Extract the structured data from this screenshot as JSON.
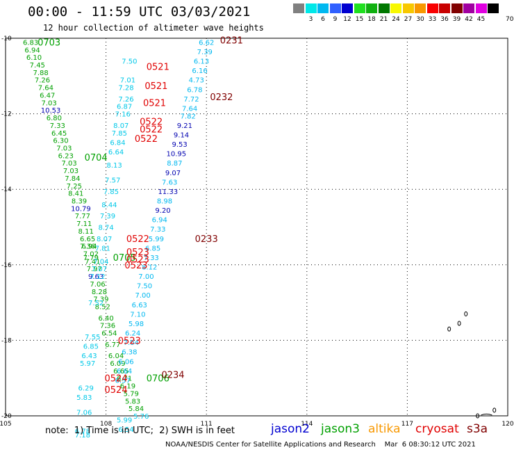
{
  "header": {
    "title": "00:00 - 11:59 UTC 03/03/2021",
    "subtitle": "12 hour collection of altimeter wave heights"
  },
  "color_scale": {
    "unit": "70 (ft)",
    "bins": [
      {
        "label": "",
        "color": "#808080"
      },
      {
        "label": "3",
        "color": "#00e8e8"
      },
      {
        "label": "6",
        "color": "#00b8f0"
      },
      {
        "label": "9",
        "color": "#3060ff"
      },
      {
        "label": "12",
        "color": "#0000d0"
      },
      {
        "label": "15",
        "color": "#20e020"
      },
      {
        "label": "18",
        "color": "#10b010"
      },
      {
        "label": "21",
        "color": "#007800"
      },
      {
        "label": "24",
        "color": "#f8f800"
      },
      {
        "label": "27",
        "color": "#f8c800"
      },
      {
        "label": "30",
        "color": "#f89800"
      },
      {
        "label": "33",
        "color": "#f80000"
      },
      {
        "label": "36",
        "color": "#c80000"
      },
      {
        "label": "39",
        "color": "#800000"
      },
      {
        "label": "42",
        "color": "#a000a0"
      },
      {
        "label": "45",
        "color": "#e000e0"
      },
      {
        "label": "",
        "color": "#000000"
      }
    ]
  },
  "chart_data": {
    "type": "scatter",
    "xlim": [
      105,
      120
    ],
    "ylim": [
      -20,
      -10
    ],
    "x_ticks": [
      "105",
      "108",
      "111",
      "114",
      "117",
      "120"
    ],
    "y_ticks": [
      "-10",
      "-12",
      "-14",
      "-16",
      "-18",
      "-20"
    ],
    "grid": true,
    "series": [
      {
        "name": "jason3",
        "color": "#00a000",
        "points": [
          {
            "x": 105.75,
            "y": -10.1,
            "v": 6.83
          },
          {
            "x": 105.8,
            "y": -10.3,
            "v": 6.94
          },
          {
            "x": 105.85,
            "y": -10.5,
            "v": 6.1
          },
          {
            "x": 105.95,
            "y": -10.7,
            "v": 7.45
          },
          {
            "x": 106.05,
            "y": -10.9,
            "v": 7.88
          },
          {
            "x": 106.1,
            "y": -11.1,
            "v": 7.26
          },
          {
            "x": 106.2,
            "y": -11.3,
            "v": 7.64
          },
          {
            "x": 106.25,
            "y": -11.5,
            "v": 6.47
          },
          {
            "x": 106.3,
            "y": -11.7,
            "v": 7.03
          },
          {
            "x": 106.35,
            "y": -11.9,
            "v": 10.53
          },
          {
            "x": 106.45,
            "y": -12.1,
            "v": 6.8
          },
          {
            "x": 106.55,
            "y": -12.3,
            "v": 7.33
          },
          {
            "x": 106.6,
            "y": -12.5,
            "v": 6.45
          },
          {
            "x": 106.65,
            "y": -12.7,
            "v": 6.3
          },
          {
            "x": 106.75,
            "y": -12.9,
            "v": 7.03
          },
          {
            "x": 106.8,
            "y": -13.1,
            "v": 6.23
          },
          {
            "x": 106.9,
            "y": -13.3,
            "v": 7.03
          },
          {
            "x": 106.95,
            "y": -13.5,
            "v": 7.03
          },
          {
            "x": 107.0,
            "y": -13.7,
            "v": 7.84
          },
          {
            "x": 107.05,
            "y": -13.9,
            "v": 7.25
          },
          {
            "x": 107.1,
            "y": -14.1,
            "v": 8.41
          },
          {
            "x": 107.2,
            "y": -14.3,
            "v": 8.39
          },
          {
            "x": 107.25,
            "y": -14.5,
            "v": 10.79
          },
          {
            "x": 107.3,
            "y": -14.7,
            "v": 7.77
          },
          {
            "x": 107.35,
            "y": -14.9,
            "v": 7.11
          },
          {
            "x": 107.4,
            "y": -15.1,
            "v": 8.11
          },
          {
            "x": 107.45,
            "y": -15.3,
            "v": 6.65
          },
          {
            "x": 107.5,
            "y": -15.5,
            "v": 6.94
          },
          {
            "x": 107.55,
            "y": -15.7,
            "v": 7.02
          },
          {
            "x": 107.6,
            "y": -15.9,
            "v": 7.41
          },
          {
            "x": 107.65,
            "y": -16.1,
            "v": 7.97
          },
          {
            "x": 107.7,
            "y": -16.3,
            "v": 9.63
          },
          {
            "x": 107.75,
            "y": -16.5,
            "v": 7.06
          },
          {
            "x": 107.8,
            "y": -16.7,
            "v": 8.28
          },
          {
            "x": 107.85,
            "y": -16.9,
            "v": 7.39
          },
          {
            "x": 107.9,
            "y": -17.1,
            "v": 8.52
          },
          {
            "x": 108.0,
            "y": -17.4,
            "v": 6.4
          },
          {
            "x": 108.05,
            "y": -17.6,
            "v": 7.36
          },
          {
            "x": 108.1,
            "y": -17.8,
            "v": 6.54
          },
          {
            "x": 108.2,
            "y": -18.1,
            "v": 6.77
          },
          {
            "x": 108.3,
            "y": -18.4,
            "v": 6.04
          },
          {
            "x": 108.35,
            "y": -18.6,
            "v": 6.09
          },
          {
            "x": 108.45,
            "y": -18.8,
            "v": 6.65
          },
          {
            "x": 108.55,
            "y": -19.0,
            "v": 6.71
          },
          {
            "x": 108.65,
            "y": -19.2,
            "v": 6.19
          },
          {
            "x": 108.75,
            "y": -19.4,
            "v": 5.79
          },
          {
            "x": 108.8,
            "y": -19.6,
            "v": 5.83
          },
          {
            "x": 108.9,
            "y": -19.8,
            "v": 5.84
          }
        ]
      },
      {
        "name": "jason3 (track 0703/0704)",
        "color": "#00a000",
        "points": [
          {
            "x": 107.45,
            "y": -15.5,
            "v": 7.36
          },
          {
            "x": 107.55,
            "y": -15.8,
            "v": 7.79
          }
        ]
      },
      {
        "name": "altika",
        "color": "#00b8f0",
        "points": [
          {
            "x": 111.0,
            "y": -10.1,
            "v": 6.62
          },
          {
            "x": 110.95,
            "y": -10.35,
            "v": 7.39
          },
          {
            "x": 110.85,
            "y": -10.6,
            "v": 6.13
          },
          {
            "x": 110.8,
            "y": -10.85,
            "v": 6.16
          },
          {
            "x": 110.7,
            "y": -11.1,
            "v": 4.73
          },
          {
            "x": 110.65,
            "y": -11.35,
            "v": 6.78
          },
          {
            "x": 110.55,
            "y": -11.6,
            "v": 7.72
          },
          {
            "x": 110.5,
            "y": -11.85,
            "v": 7.64
          },
          {
            "x": 110.45,
            "y": -12.05,
            "v": 7.82
          },
          {
            "x": 110.35,
            "y": -12.3,
            "v": 9.21
          },
          {
            "x": 110.25,
            "y": -12.55,
            "v": 9.14
          },
          {
            "x": 110.2,
            "y": -12.8,
            "v": 9.53
          },
          {
            "x": 110.1,
            "y": -13.05,
            "v": 10.95
          },
          {
            "x": 110.05,
            "y": -13.3,
            "v": 8.87
          },
          {
            "x": 110.0,
            "y": -13.55,
            "v": 9.07
          },
          {
            "x": 109.9,
            "y": -13.8,
            "v": 7.63
          },
          {
            "x": 109.85,
            "y": -14.05,
            "v": 11.33
          },
          {
            "x": 109.75,
            "y": -14.3,
            "v": 8.98
          },
          {
            "x": 109.7,
            "y": -14.55,
            "v": 9.2
          },
          {
            "x": 109.6,
            "y": -14.8,
            "v": 6.94
          },
          {
            "x": 109.55,
            "y": -15.05,
            "v": 7.33
          },
          {
            "x": 109.5,
            "y": -15.3,
            "v": 5.99
          },
          {
            "x": 109.4,
            "y": -15.55,
            "v": 6.85
          },
          {
            "x": 109.35,
            "y": -15.8,
            "v": 7.33
          },
          {
            "x": 109.3,
            "y": -16.05,
            "v": 8.12
          },
          {
            "x": 109.2,
            "y": -16.3,
            "v": 7.0
          },
          {
            "x": 109.15,
            "y": -16.55,
            "v": 7.5
          },
          {
            "x": 109.1,
            "y": -16.8,
            "v": 7.0
          },
          {
            "x": 109.0,
            "y": -17.05,
            "v": 6.63
          },
          {
            "x": 108.95,
            "y": -17.3,
            "v": 7.1
          },
          {
            "x": 108.9,
            "y": -17.55,
            "v": 5.98
          },
          {
            "x": 108.8,
            "y": -17.8,
            "v": 6.24
          },
          {
            "x": 108.75,
            "y": -18.05,
            "v": 7.04
          },
          {
            "x": 108.7,
            "y": -18.3,
            "v": 6.38
          },
          {
            "x": 108.6,
            "y": -18.55,
            "v": 6.06
          },
          {
            "x": 108.55,
            "y": -18.8,
            "v": 6.64
          },
          {
            "x": 108.5,
            "y": -19.05,
            "v": 6.57
          }
        ]
      },
      {
        "name": "cryosat",
        "color": "#00c8e8",
        "points": [
          {
            "x": 108.7,
            "y": -10.6,
            "v": 7.5
          },
          {
            "x": 108.65,
            "y": -11.1,
            "v": 7.01
          },
          {
            "x": 108.6,
            "y": -11.3,
            "v": 7.28
          },
          {
            "x": 108.6,
            "y": -11.6,
            "v": 7.26
          },
          {
            "x": 108.55,
            "y": -11.8,
            "v": 6.87
          },
          {
            "x": 108.5,
            "y": -12.0,
            "v": 7.16
          },
          {
            "x": 108.45,
            "y": -12.3,
            "v": 8.07
          },
          {
            "x": 108.4,
            "y": -12.5,
            "v": 7.85
          },
          {
            "x": 108.35,
            "y": -12.75,
            "v": 6.84
          },
          {
            "x": 108.3,
            "y": -13.0,
            "v": 6.64
          },
          {
            "x": 108.25,
            "y": -13.35,
            "v": 8.13
          },
          {
            "x": 108.2,
            "y": -13.75,
            "v": 7.57
          },
          {
            "x": 108.15,
            "y": -14.05,
            "v": 7.85
          },
          {
            "x": 108.1,
            "y": -14.4,
            "v": 8.44
          },
          {
            "x": 108.05,
            "y": -14.7,
            "v": 7.39
          },
          {
            "x": 108.0,
            "y": -15.0,
            "v": 8.74
          },
          {
            "x": 107.95,
            "y": -15.3,
            "v": 8.07
          },
          {
            "x": 107.9,
            "y": -15.55,
            "v": 7.81
          },
          {
            "x": 107.85,
            "y": -15.9,
            "v": 7.04
          },
          {
            "x": 107.8,
            "y": -16.1,
            "v": 7.07
          },
          {
            "x": 107.75,
            "y": -16.3,
            "v": 7.12
          },
          {
            "x": 107.7,
            "y": -17.0,
            "v": 7.52
          },
          {
            "x": 107.6,
            "y": -17.9,
            "v": 7.55
          },
          {
            "x": 107.55,
            "y": -18.15,
            "v": 6.85
          },
          {
            "x": 107.5,
            "y": -18.4,
            "v": 6.43
          },
          {
            "x": 107.45,
            "y": -18.6,
            "v": 5.97
          },
          {
            "x": 107.4,
            "y": -19.25,
            "v": 6.29
          },
          {
            "x": 107.35,
            "y": -19.5,
            "v": 5.83
          },
          {
            "x": 107.35,
            "y": -19.9,
            "v": 7.06
          },
          {
            "x": 107.3,
            "y": -20.4,
            "v": 6.78
          },
          {
            "x": 107.3,
            "y": -20.5,
            "v": 7.18
          },
          {
            "x": 108.55,
            "y": -20.1,
            "v": 5.99
          },
          {
            "x": 108.6,
            "y": -20.35,
            "v": 6.54
          },
          {
            "x": 109.05,
            "y": -20.0,
            "v": 5.76
          }
        ]
      }
    ],
    "track_labels": [
      {
        "text": "0703",
        "x": 106.3,
        "y": -10.1,
        "color": "#00a000"
      },
      {
        "text": "0704",
        "x": 107.7,
        "y": -13.15,
        "color": "#00a000"
      },
      {
        "text": "0705",
        "x": 108.55,
        "y": -15.8,
        "color": "#00a000"
      },
      {
        "text": "0706",
        "x": 109.55,
        "y": -19.0,
        "color": "#00a000"
      },
      {
        "text": "0231",
        "x": 111.75,
        "y": -10.05,
        "color": "#800000"
      },
      {
        "text": "0232",
        "x": 111.45,
        "y": -11.55,
        "color": "#800000"
      },
      {
        "text": "0233",
        "x": 111.0,
        "y": -15.3,
        "color": "#800000"
      },
      {
        "text": "0234",
        "x": 110.0,
        "y": -18.9,
        "color": "#800000"
      },
      {
        "text": "0521",
        "x": 109.55,
        "y": -10.75,
        "color": "#e00000"
      },
      {
        "text": "0521",
        "x": 109.5,
        "y": -11.25,
        "color": "#e00000"
      },
      {
        "text": "0521",
        "x": 109.45,
        "y": -11.7,
        "color": "#e00000"
      },
      {
        "text": "0522",
        "x": 109.35,
        "y": -12.2,
        "color": "#e00000"
      },
      {
        "text": "0522",
        "x": 109.35,
        "y": -12.4,
        "color": "#e00000"
      },
      {
        "text": "0522",
        "x": 109.2,
        "y": -12.65,
        "color": "#e00000"
      },
      {
        "text": "0522",
        "x": 108.95,
        "y": -15.3,
        "color": "#e00000"
      },
      {
        "text": "0523",
        "x": 108.95,
        "y": -15.65,
        "color": "#e00000"
      },
      {
        "text": "0523",
        "x": 108.95,
        "y": -15.85,
        "color": "#e00000"
      },
      {
        "text": "0523",
        "x": 108.9,
        "y": -16.0,
        "color": "#e00000"
      },
      {
        "text": "0523",
        "x": 108.7,
        "y": -18.0,
        "color": "#e00000"
      },
      {
        "text": "0524",
        "x": 108.3,
        "y": -19.0,
        "color": "#e00000"
      },
      {
        "text": "0524",
        "x": 108.3,
        "y": -19.3,
        "color": "#e00000"
      }
    ]
  },
  "footnote": "note:  1) Time is in UTC;  2) SWH is in feet",
  "satellite_legend": [
    {
      "label": "jason2",
      "color": "#0000d0"
    },
    {
      "label": "jason3",
      "color": "#00a000"
    },
    {
      "label": "altika",
      "color": "#f89800"
    },
    {
      "label": "cryosat",
      "color": "#e00000"
    },
    {
      "label": "s3a",
      "color": "#800000"
    }
  ],
  "credit": "NOAA/NESDIS Center for Satellite Applications and Research    Mar  6 08:30:12 UTC 2021"
}
